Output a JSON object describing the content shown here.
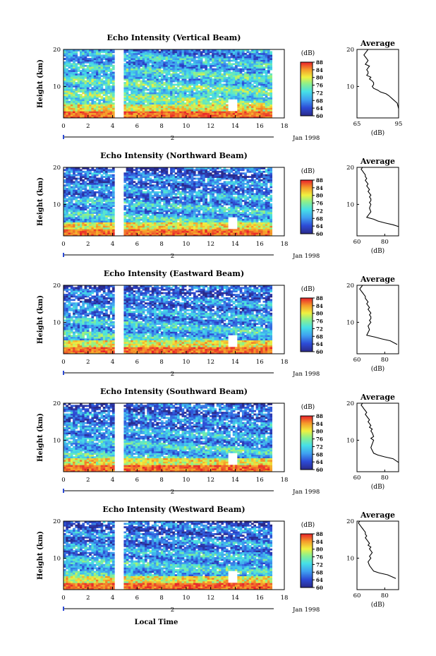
{
  "chart_data": [
    {
      "type": "heatmap",
      "title": "Echo Intensity (Vertical Beam)",
      "ylabel": "Height (km)",
      "x_ticks": [
        "0",
        "2",
        "4",
        "6",
        "8",
        "10",
        "12",
        "14",
        "16",
        "18"
      ],
      "xlim": [
        0,
        18
      ],
      "y_ticks": [
        "10",
        "20"
      ],
      "ylim": [
        1.5,
        20
      ],
      "date_axis_label": "2",
      "date_label": "Jan 1998",
      "colorbar": {
        "unit": "(dB)",
        "ticks": [
          "88",
          "84",
          "80",
          "76",
          "72",
          "68",
          "64",
          "60"
        ],
        "range": [
          60,
          88
        ]
      },
      "gap": [
        4.1,
        5.0
      ],
      "data_end": 17
    },
    {
      "type": "heatmap",
      "title": "Echo Intensity (Northward Beam)",
      "ylabel": "Height (km)",
      "x_ticks": [
        "0",
        "2",
        "4",
        "6",
        "8",
        "10",
        "12",
        "14",
        "16",
        "18"
      ],
      "xlim": [
        0,
        18
      ],
      "y_ticks": [
        "10",
        "20"
      ],
      "ylim": [
        1.5,
        20
      ],
      "date_axis_label": "2",
      "date_label": "Jan 1998",
      "colorbar": {
        "unit": "(dB)",
        "ticks": [
          "88",
          "84",
          "80",
          "76",
          "72",
          "68",
          "64",
          "60"
        ],
        "range": [
          60,
          88
        ]
      },
      "gap": [
        4.1,
        5.0
      ],
      "data_end": 17
    },
    {
      "type": "heatmap",
      "title": "Echo Intensity (Eastward Beam)",
      "ylabel": "Height (km)",
      "x_ticks": [
        "0",
        "2",
        "4",
        "6",
        "8",
        "10",
        "12",
        "14",
        "16",
        "18"
      ],
      "xlim": [
        0,
        18
      ],
      "y_ticks": [
        "10",
        "20"
      ],
      "ylim": [
        1.5,
        20
      ],
      "date_axis_label": "2",
      "date_label": "Jan 1998",
      "colorbar": {
        "unit": "(dB)",
        "ticks": [
          "88",
          "84",
          "80",
          "76",
          "72",
          "68",
          "64",
          "60"
        ],
        "range": [
          60,
          88
        ]
      },
      "gap": [
        4.1,
        5.0
      ],
      "data_end": 17
    },
    {
      "type": "heatmap",
      "title": "Echo Intensity (Southward Beam)",
      "ylabel": "Height (km)",
      "x_ticks": [
        "0",
        "2",
        "4",
        "6",
        "8",
        "10",
        "12",
        "14",
        "16",
        "18"
      ],
      "xlim": [
        0,
        18
      ],
      "y_ticks": [
        "10",
        "20"
      ],
      "ylim": [
        1.5,
        20
      ],
      "date_axis_label": "2",
      "date_label": "Jan 1998",
      "colorbar": {
        "unit": "(dB)",
        "ticks": [
          "88",
          "84",
          "80",
          "76",
          "72",
          "68",
          "64",
          "60"
        ],
        "range": [
          60,
          88
        ]
      },
      "gap": [
        4.1,
        5.0
      ],
      "data_end": 17
    },
    {
      "type": "heatmap",
      "title": "Echo Intensity (Westward Beam)",
      "ylabel": "Height (km)",
      "x_ticks": [
        "0",
        "2",
        "4",
        "6",
        "8",
        "10",
        "12",
        "14",
        "16",
        "18"
      ],
      "xlim": [
        0,
        18
      ],
      "y_ticks": [
        "10",
        "20"
      ],
      "ylim": [
        1.5,
        20
      ],
      "date_axis_label": "2",
      "date_label": "Jan 1998",
      "colorbar": {
        "unit": "(dB)",
        "ticks": [
          "88",
          "84",
          "80",
          "76",
          "72",
          "68",
          "64",
          "60"
        ],
        "range": [
          60,
          88
        ]
      },
      "gap": [
        4.1,
        5.0
      ],
      "data_end": 17,
      "xlabel": "Local Time"
    },
    {
      "type": "line",
      "title": "Average",
      "ylabel": "",
      "xlabel": "(dB)",
      "x_ticks": [
        "65",
        "95"
      ],
      "xlim": [
        65,
        95
      ],
      "y_ticks": [
        "10",
        "20"
      ],
      "ylim": [
        1.5,
        20
      ],
      "series": [
        {
          "x": [
            73,
            72,
            71,
            70,
            71,
            72,
            73,
            72,
            71,
            74,
            73,
            72,
            73,
            73,
            72,
            75,
            74,
            76,
            77,
            77,
            76,
            77,
            80,
            82,
            86,
            88,
            91,
            94,
            95
          ],
          "y": [
            20,
            19.5,
            19,
            18.5,
            18,
            17.5,
            17,
            16.5,
            16,
            15.5,
            15,
            14.5,
            14,
            13.5,
            13,
            12.5,
            12,
            11.5,
            11,
            10.5,
            10,
            9.5,
            9,
            8.5,
            8,
            7.5,
            6.5,
            5.5,
            4
          ]
        }
      ]
    },
    {
      "type": "line",
      "title": "Average",
      "ylabel": "",
      "xlabel": "(dB)",
      "x_ticks": [
        "60",
        "80"
      ],
      "xlim": [
        60,
        90
      ],
      "y_ticks": [
        "10",
        "20"
      ],
      "ylim": [
        1.5,
        20
      ],
      "series": [
        {
          "x": [
            64,
            63,
            64,
            65,
            66,
            66,
            67,
            66,
            67,
            68,
            67,
            68,
            69,
            68,
            69,
            70,
            69,
            70,
            70,
            69,
            70,
            69,
            70,
            68,
            67,
            72,
            75,
            80,
            86,
            90
          ],
          "y": [
            20,
            19.5,
            19,
            18.5,
            18,
            17.5,
            17,
            16.5,
            16,
            15.5,
            15,
            14.5,
            14,
            13.5,
            13,
            12.5,
            12,
            11.5,
            11,
            10.5,
            10,
            9,
            8,
            7,
            6.5,
            6,
            5.5,
            5,
            4.5,
            4
          ]
        }
      ]
    },
    {
      "type": "line",
      "title": "Average",
      "ylabel": "",
      "xlabel": "(dB)",
      "x_ticks": [
        "60",
        "80"
      ],
      "xlim": [
        60,
        90
      ],
      "y_ticks": [
        "10",
        "20"
      ],
      "ylim": [
        1.5,
        20
      ],
      "series": [
        {
          "x": [
            64,
            62,
            63,
            64,
            65,
            66,
            66,
            67,
            68,
            67,
            68,
            69,
            68,
            69,
            70,
            69,
            70,
            70,
            69,
            70,
            68,
            69,
            67,
            73,
            78,
            84,
            89
          ],
          "y": [
            20,
            19,
            18.5,
            18,
            17.5,
            17,
            16.5,
            16,
            15.5,
            15,
            14.5,
            14,
            13.5,
            13,
            12.5,
            12,
            11.5,
            11,
            10.5,
            10,
            9,
            8,
            6.5,
            6,
            5.5,
            5,
            4
          ]
        }
      ]
    },
    {
      "type": "line",
      "title": "Average",
      "ylabel": "",
      "xlabel": "(dB)",
      "x_ticks": [
        "60",
        "80"
      ],
      "xlim": [
        60,
        90
      ],
      "y_ticks": [
        "10",
        "20"
      ],
      "ylim": [
        1.5,
        20
      ],
      "series": [
        {
          "x": [
            64,
            63,
            64,
            65,
            66,
            67,
            66,
            68,
            69,
            68,
            69,
            70,
            69,
            71,
            70,
            71,
            72,
            70,
            72,
            71,
            70,
            72,
            75,
            80,
            86,
            90
          ],
          "y": [
            20,
            19.5,
            19,
            18.5,
            18,
            17.5,
            17,
            16,
            15.5,
            15,
            14.5,
            14,
            13.5,
            13,
            12.5,
            12,
            11,
            10.5,
            10,
            9,
            8,
            6.5,
            6,
            5.5,
            5,
            4
          ]
        }
      ]
    },
    {
      "type": "line",
      "title": "Average",
      "ylabel": "",
      "xlabel": "(dB)",
      "x_ticks": [
        "60",
        "80"
      ],
      "xlim": [
        60,
        90
      ],
      "y_ticks": [
        "10",
        "20"
      ],
      "ylim": [
        1.5,
        20
      ],
      "series": [
        {
          "x": [
            62,
            61,
            62,
            63,
            64,
            65,
            66,
            66,
            67,
            66,
            67,
            68,
            69,
            68,
            70,
            69,
            70,
            71,
            70,
            69,
            70,
            68,
            69,
            72,
            76,
            82,
            88
          ],
          "y": [
            20,
            19.5,
            19,
            18.5,
            18,
            17.5,
            17,
            16.5,
            16,
            15.5,
            15,
            14.5,
            14,
            13.5,
            13,
            12.5,
            12,
            11.5,
            11,
            10.5,
            10,
            9,
            8,
            6.5,
            6,
            5.5,
            4.5
          ]
        }
      ]
    }
  ]
}
